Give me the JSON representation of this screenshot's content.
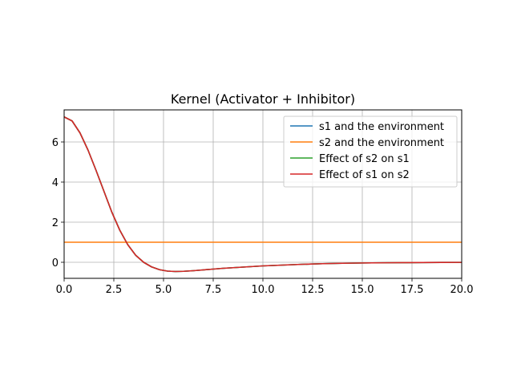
{
  "chart_data": {
    "type": "line",
    "title": "Kernel (Activator + Inhibitor)",
    "xlabel": "",
    "ylabel": "",
    "xlim": [
      0,
      20
    ],
    "ylim": [
      -0.8,
      7.6
    ],
    "xticks": [
      0,
      2.5,
      5,
      7.5,
      10,
      12.5,
      15,
      17.5,
      20
    ],
    "xtick_labels": [
      "0.0",
      "2.5",
      "5.0",
      "7.5",
      "10.0",
      "12.5",
      "15.0",
      "17.5",
      "20.0"
    ],
    "yticks": [
      0,
      2,
      4,
      6
    ],
    "ytick_labels": [
      "0",
      "2",
      "4",
      "6"
    ],
    "grid": true,
    "legend_position": "top-right",
    "series": [
      {
        "name": "s1 and the environment",
        "color": "#1f77b4",
        "x": [
          0,
          0.4,
          0.8,
          1.2,
          1.6,
          2.0,
          2.4,
          2.8,
          3.2,
          3.6,
          4.0,
          4.4,
          4.8,
          5.2,
          5.6,
          6.0,
          6.5,
          7.0,
          7.5,
          8,
          9,
          10,
          11,
          12,
          13,
          14,
          15,
          16,
          17,
          18,
          19,
          20
        ],
        "y": [
          7.25,
          7.05,
          6.45,
          5.6,
          4.6,
          3.55,
          2.5,
          1.6,
          0.88,
          0.35,
          0.0,
          -0.23,
          -0.37,
          -0.44,
          -0.46,
          -0.45,
          -0.42,
          -0.38,
          -0.34,
          -0.3,
          -0.24,
          -0.18,
          -0.14,
          -0.1,
          -0.07,
          -0.05,
          -0.035,
          -0.025,
          -0.018,
          -0.012,
          -0.008,
          -0.005
        ]
      },
      {
        "name": "s2 and the environment",
        "color": "#ff7f0e",
        "x": [
          0,
          20
        ],
        "y": [
          1.0,
          1.0
        ]
      },
      {
        "name": "Effect of s2 on s1",
        "color": "#2ca02c",
        "x": [
          0,
          0.4,
          0.8,
          1.2,
          1.6,
          2.0,
          2.4,
          2.8,
          3.2,
          3.6,
          4.0,
          4.4,
          4.8,
          5.2,
          5.6,
          6.0,
          6.5,
          7.0,
          7.5,
          8,
          9,
          10,
          11,
          12,
          13,
          14,
          15,
          16,
          17,
          18,
          19,
          20
        ],
        "y": [
          7.25,
          7.05,
          6.45,
          5.6,
          4.6,
          3.55,
          2.5,
          1.6,
          0.88,
          0.35,
          0.0,
          -0.23,
          -0.37,
          -0.44,
          -0.46,
          -0.45,
          -0.42,
          -0.38,
          -0.34,
          -0.3,
          -0.24,
          -0.18,
          -0.14,
          -0.1,
          -0.07,
          -0.05,
          -0.035,
          -0.025,
          -0.018,
          -0.012,
          -0.008,
          -0.005
        ]
      },
      {
        "name": "Effect of s1 on s2",
        "color": "#d62728",
        "x": [
          0,
          0.4,
          0.8,
          1.2,
          1.6,
          2.0,
          2.4,
          2.8,
          3.2,
          3.6,
          4.0,
          4.4,
          4.8,
          5.2,
          5.6,
          6.0,
          6.5,
          7.0,
          7.5,
          8,
          9,
          10,
          11,
          12,
          13,
          14,
          15,
          16,
          17,
          18,
          19,
          20
        ],
        "y": [
          7.25,
          7.05,
          6.45,
          5.6,
          4.6,
          3.55,
          2.5,
          1.6,
          0.88,
          0.35,
          0.0,
          -0.23,
          -0.37,
          -0.44,
          -0.46,
          -0.45,
          -0.42,
          -0.38,
          -0.34,
          -0.3,
          -0.24,
          -0.18,
          -0.14,
          -0.1,
          -0.07,
          -0.05,
          -0.035,
          -0.025,
          -0.018,
          -0.012,
          -0.008,
          -0.005
        ]
      }
    ]
  }
}
